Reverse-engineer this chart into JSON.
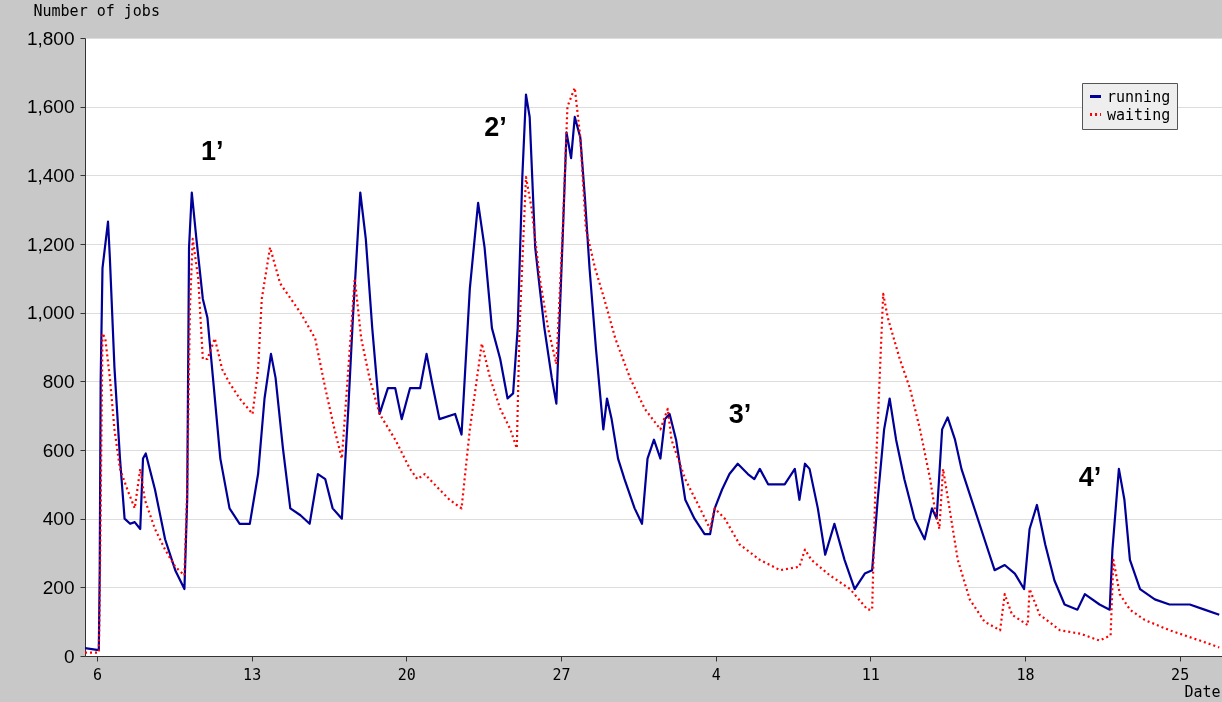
{
  "chart_data": {
    "type": "line",
    "ylabel": "Number of jobs",
    "xlabel": "Date",
    "xlim": [
      "--11-05T11:00",
      "--12-26T22:00"
    ],
    "xticks": [
      {
        "value": "--11-06",
        "label": "6"
      },
      {
        "value": "--11-13",
        "label": "13"
      },
      {
        "value": "--11-20",
        "label": "20"
      },
      {
        "value": "--11-27",
        "label": "27"
      },
      {
        "value": "--12-04",
        "label": "4"
      },
      {
        "value": "--12-11",
        "label": "11"
      },
      {
        "value": "--12-18",
        "label": "18"
      },
      {
        "value": "--12-25",
        "label": "25"
      }
    ],
    "ylim": [
      0,
      1800
    ],
    "yticks": [
      0,
      200,
      400,
      600,
      800,
      {
        "value": 1000,
        "label": "1,000"
      },
      {
        "value": 1200,
        "label": "1,200"
      },
      {
        "value": 1400,
        "label": "1,400"
      },
      {
        "value": 1600,
        "label": "1,600"
      },
      {
        "value": 1800,
        "label": "1,800"
      }
    ],
    "grid": "y",
    "legend": "top right",
    "annotations": [
      "1’",
      "2’",
      "3’",
      "4’"
    ],
    "series": [
      {
        "name": "running",
        "color": "#000099",
        "line_style": "solid",
        "x": [
          "--11-05T11:00",
          "--11-06T00:00",
          "--11-06T02:00",
          "--11-06T03:00",
          "--11-06T04:00",
          "--11-06T06:00",
          "--11-06T12:00",
          "--11-06T14:00",
          "--11-06T19:00",
          "--11-07T01:00",
          "--11-07T06:00",
          "--11-07T12:00",
          "--11-07T17:00",
          "--11-07T23:00",
          "--11-08T02:00",
          "--11-08T05:00",
          "--11-08T15:00",
          "--11-09T02:00",
          "--11-09T13:00",
          "--11-09T23:00",
          "--11-10T02:00",
          "--11-10T04:00",
          "--11-10T07:00",
          "--11-10T12:00",
          "--11-10T19:00",
          "--11-11T00:00",
          "--11-11T06:00",
          "--11-11T14:00",
          "--11-12T00:00",
          "--11-12T11:00",
          "--11-12T22:00",
          "--11-13T07:00",
          "--11-13T14:00",
          "--11-13T21:00",
          "--11-14T02:00",
          "--11-14T10:00",
          "--11-14T18:00",
          "--11-15T05:00",
          "--11-15T15:00",
          "--11-16T00:00",
          "--11-16T08:00",
          "--11-16T16:00",
          "--11-17T02:00",
          "--11-17T09:00",
          "--11-17T14:00",
          "--11-17T22:00",
          "--11-18T04:00",
          "--11-18T11:00",
          "--11-18T19:00",
          "--11-19T04:00",
          "--11-19T12:00",
          "--11-19T19:00",
          "--11-20T04:00",
          "--11-20T15:00",
          "--11-20T22:00",
          "--11-21T04:00",
          "--11-21T12:00",
          "--11-22T05:00",
          "--11-22T12:00",
          "--11-22T21:00",
          "--11-23T06:00",
          "--11-23T13:00",
          "--11-23T21:00",
          "--11-24T06:00",
          "--11-24T14:00",
          "--11-24T20:00",
          "--11-25T01:00",
          "--11-25T06:00",
          "--11-25T10:00",
          "--11-25T14:00",
          "--11-25T20:00",
          "--11-26T01:00",
          "--11-26T06:00",
          "--11-26T14:00",
          "--11-26T19:00",
          "--11-27T02:00",
          "--11-27T06:00",
          "--11-27T11:00",
          "--11-27T15:00",
          "--11-27T21:00",
          "--11-28T02:00",
          "--11-28T07:00",
          "--11-28T14:00",
          "--11-28T22:00",
          "--11-29T02:00",
          "--11-29T07:00",
          "--11-29T14:00",
          "--11-29T21:00",
          "--11-30T08:00",
          "--11-30T16:00",
          "--11-30T22:00",
          "--12-01T05:00",
          "--12-01T12:00",
          "--12-01T17:00",
          "--12-01T22:00",
          "--12-02T05:00",
          "--12-02T15:00",
          "--12-03T01:00",
          "--12-03T12:00",
          "--12-03T18:00",
          "--12-03T23:00",
          "--12-04T07:00",
          "--12-04T15:00",
          "--12-05T00:00",
          "--12-05T11:00",
          "--12-05T18:00",
          "--12-06T00:00",
          "--12-06T09:00",
          "--12-07T03:00",
          "--12-07T14:00",
          "--12-07T19:00",
          "--12-08T01:00",
          "--12-08T06:00",
          "--12-08T15:00",
          "--12-08T23:00",
          "--12-09T09:00",
          "--12-09T20:00",
          "--12-10T07:00",
          "--12-10T18:00",
          "--12-11T02:00",
          "--12-11T08:00",
          "--12-11T15:00",
          "--12-11T21:00",
          "--12-12T04:00",
          "--12-12T13:00",
          "--12-13T00:00",
          "--12-13T11:00",
          "--12-13T19:00",
          "--12-14T00:00",
          "--12-14T06:00",
          "--12-14T12:00",
          "--12-14T20:00",
          "--12-15T03:00",
          "--12-15T14:00",
          "--12-16T04:00",
          "--12-16T15:00",
          "--12-17T02:00",
          "--12-17T13:00",
          "--12-17T23:00",
          "--12-18T05:00",
          "--12-18T13:00",
          "--12-18T22:00",
          "--12-19T08:00",
          "--12-19T19:00",
          "--12-20T09:00",
          "--12-20T17:00",
          "--12-21T09:00",
          "--12-21T20:00",
          "--12-21T23:00",
          "--12-22T06:00",
          "--12-22T12:00",
          "--12-22T18:00",
          "--12-23T05:00",
          "--12-23T21:00",
          "--12-24T13:00",
          "--12-25T11:00",
          "--12-26T03:00",
          "--12-26T19:00"
        ],
        "values": [
          23,
          18,
          18,
          250,
          800,
          1130,
          1265,
          1160,
          840,
          575,
          400,
          385,
          390,
          370,
          575,
          590,
          485,
          340,
          250,
          195,
          455,
          1190,
          1350,
          1215,
          1040,
          985,
          810,
          575,
          430,
          385,
          385,
          530,
          750,
          880,
          810,
          605,
          430,
          410,
          385,
          530,
          515,
          430,
          400,
          720,
          985,
          1350,
          1215,
          955,
          705,
          780,
          780,
          690,
          780,
          780,
          880,
          795,
          690,
          705,
          645,
          1070,
          1320,
          1190,
          955,
          865,
          750,
          765,
          955,
          1395,
          1635,
          1570,
          1190,
          1070,
          955,
          810,
          735,
          1230,
          1525,
          1450,
          1570,
          1510,
          1335,
          1130,
          895,
          660,
          750,
          690,
          575,
          515,
          430,
          385,
          575,
          630,
          575,
          690,
          705,
          630,
          455,
          400,
          355,
          355,
          430,
          485,
          530,
          560,
          530,
          515,
          545,
          500,
          500,
          545,
          455,
          560,
          545,
          430,
          295,
          385,
          280,
          195,
          240,
          250,
          455,
          660,
          750,
          630,
          515,
          400,
          340,
          430,
          400,
          660,
          695,
          630,
          545,
          455,
          340,
          250,
          265,
          240,
          195,
          370,
          440,
          325,
          220,
          150,
          135,
          180,
          150,
          135,
          310,
          545,
          455,
          280,
          195,
          165,
          150,
          150,
          135,
          120
        ]
      },
      {
        "name": "waiting",
        "color": "#ff0000",
        "line_style": "dotted",
        "x": [
          "--11-05T11:00",
          "--11-06T02:00",
          "--11-06T03:00",
          "--11-06T06:00",
          "--11-06T09:00",
          "--11-06T14:00",
          "--11-06T19:00",
          "--11-07T01:00",
          "--11-07T09:00",
          "--11-07T17:00",
          "--11-07T23:00",
          "--11-08T04:00",
          "--11-08T15:00",
          "--11-09T02:00",
          "--11-09T13:00",
          "--11-09T23:00",
          "--11-10T02:00",
          "--11-10T05:00",
          "--11-10T08:00",
          "--11-10T14:00",
          "--11-10T19:00",
          "--11-11T00:00",
          "--11-11T08:00",
          "--11-11T16:00",
          "--11-12T00:00",
          "--11-12T11:00",
          "--11-13T01:00",
          "--11-13T07:00",
          "--11-13T11:00",
          "--11-13T20:00",
          "--11-14T07:00",
          "--11-15T05:00",
          "--11-15T21:00",
          "--11-16T08:00",
          "--11-16T18:00",
          "--11-17T02:00",
          "--11-17T09:00",
          "--11-17T16:00",
          "--11-17T23:00",
          "--11-18T08:00",
          "--11-18T19:00",
          "--11-19T12:00",
          "--11-20T04:00",
          "--11-20T12:00",
          "--11-20T20:00",
          "--11-21T12:00",
          "--11-21T23:00",
          "--11-22T12:00",
          "--11-22T21:00",
          "--11-23T10:00",
          "--11-23T19:00",
          "--11-24T06:00",
          "--11-24T17:00",
          "--11-25T00:00",
          "--11-25T03:00",
          "--11-25T10:00",
          "--11-25T16:00",
          "--11-26T01:00",
          "--11-26T10:00",
          "--11-26T19:00",
          "--11-27T02:00",
          "--11-27T07:00",
          "--11-27T15:00",
          "--11-27T21:00",
          "--11-28T03:00",
          "--11-28T13:00",
          "--11-28T23:00",
          "--11-29T11:00",
          "--11-30T03:00",
          "--11-30T19:00",
          "--12-01T12:00",
          "--12-01T20:00",
          "--12-02T00:00",
          "--12-02T15:00",
          "--12-03T07:00",
          "--12-03T18:00",
          "--12-03T23:00",
          "--12-04T10:00",
          "--12-05T02:00",
          "--12-06T00:00",
          "--12-06T22:00",
          "--12-07T19:00",
          "--12-08T01:00",
          "--12-08T08:00",
          "--12-09T04:00",
          "--12-10T02:00",
          "--12-10T21:00",
          "--12-11T02:00",
          "--12-11T06:00",
          "--12-11T14:00",
          "--12-11T19:00",
          "--12-12T08:00",
          "--12-12T19:00",
          "--12-13T06:00",
          "--12-13T17:00",
          "--12-13T22:00",
          "--12-14T03:00",
          "--12-14T07:00",
          "--12-14T14:00",
          "--12-14T23:00",
          "--12-15T12:00",
          "--12-16T04:00",
          "--12-16T21:00",
          "--12-17T02:00",
          "--12-17T10:00",
          "--12-18T03:00",
          "--12-18T05:00",
          "--12-18T16:00",
          "--12-19T14:00",
          "--12-20T12:00",
          "--12-21T09:00",
          "--12-21T21:00",
          "--12-22T00:00",
          "--12-22T07:00",
          "--12-22T18:00",
          "--12-23T10:00",
          "--12-24T13:00",
          "--12-25T22:00",
          "--12-26T19:00"
        ],
        "values": [
          10,
          10,
          165,
          940,
          925,
          810,
          660,
          545,
          485,
          430,
          545,
          455,
          370,
          310,
          260,
          235,
          485,
          1015,
          1215,
          1100,
          865,
          865,
          925,
          835,
          795,
          750,
          705,
          835,
          1040,
          1190,
          1085,
          1000,
          925,
          780,
          660,
          575,
          835,
          1100,
          925,
          810,
          705,
          630,
          545,
          515,
          530,
          485,
          455,
          430,
          660,
          910,
          810,
          720,
          660,
          605,
          955,
          1395,
          1305,
          1100,
          955,
          850,
          1245,
          1600,
          1655,
          1510,
          1245,
          1130,
          1040,
          925,
          810,
          720,
          660,
          720,
          630,
          515,
          430,
          370,
          430,
          400,
          325,
          280,
          250,
          260,
          310,
          280,
          235,
          195,
          135,
          135,
          545,
          1055,
          985,
          865,
          780,
          660,
          515,
          430,
          370,
          545,
          430,
          280,
          165,
          100,
          75,
          180,
          120,
          90,
          195,
          120,
          75,
          65,
          45,
          60,
          280,
          180,
          135,
          105,
          75,
          45,
          25
        ]
      }
    ]
  }
}
